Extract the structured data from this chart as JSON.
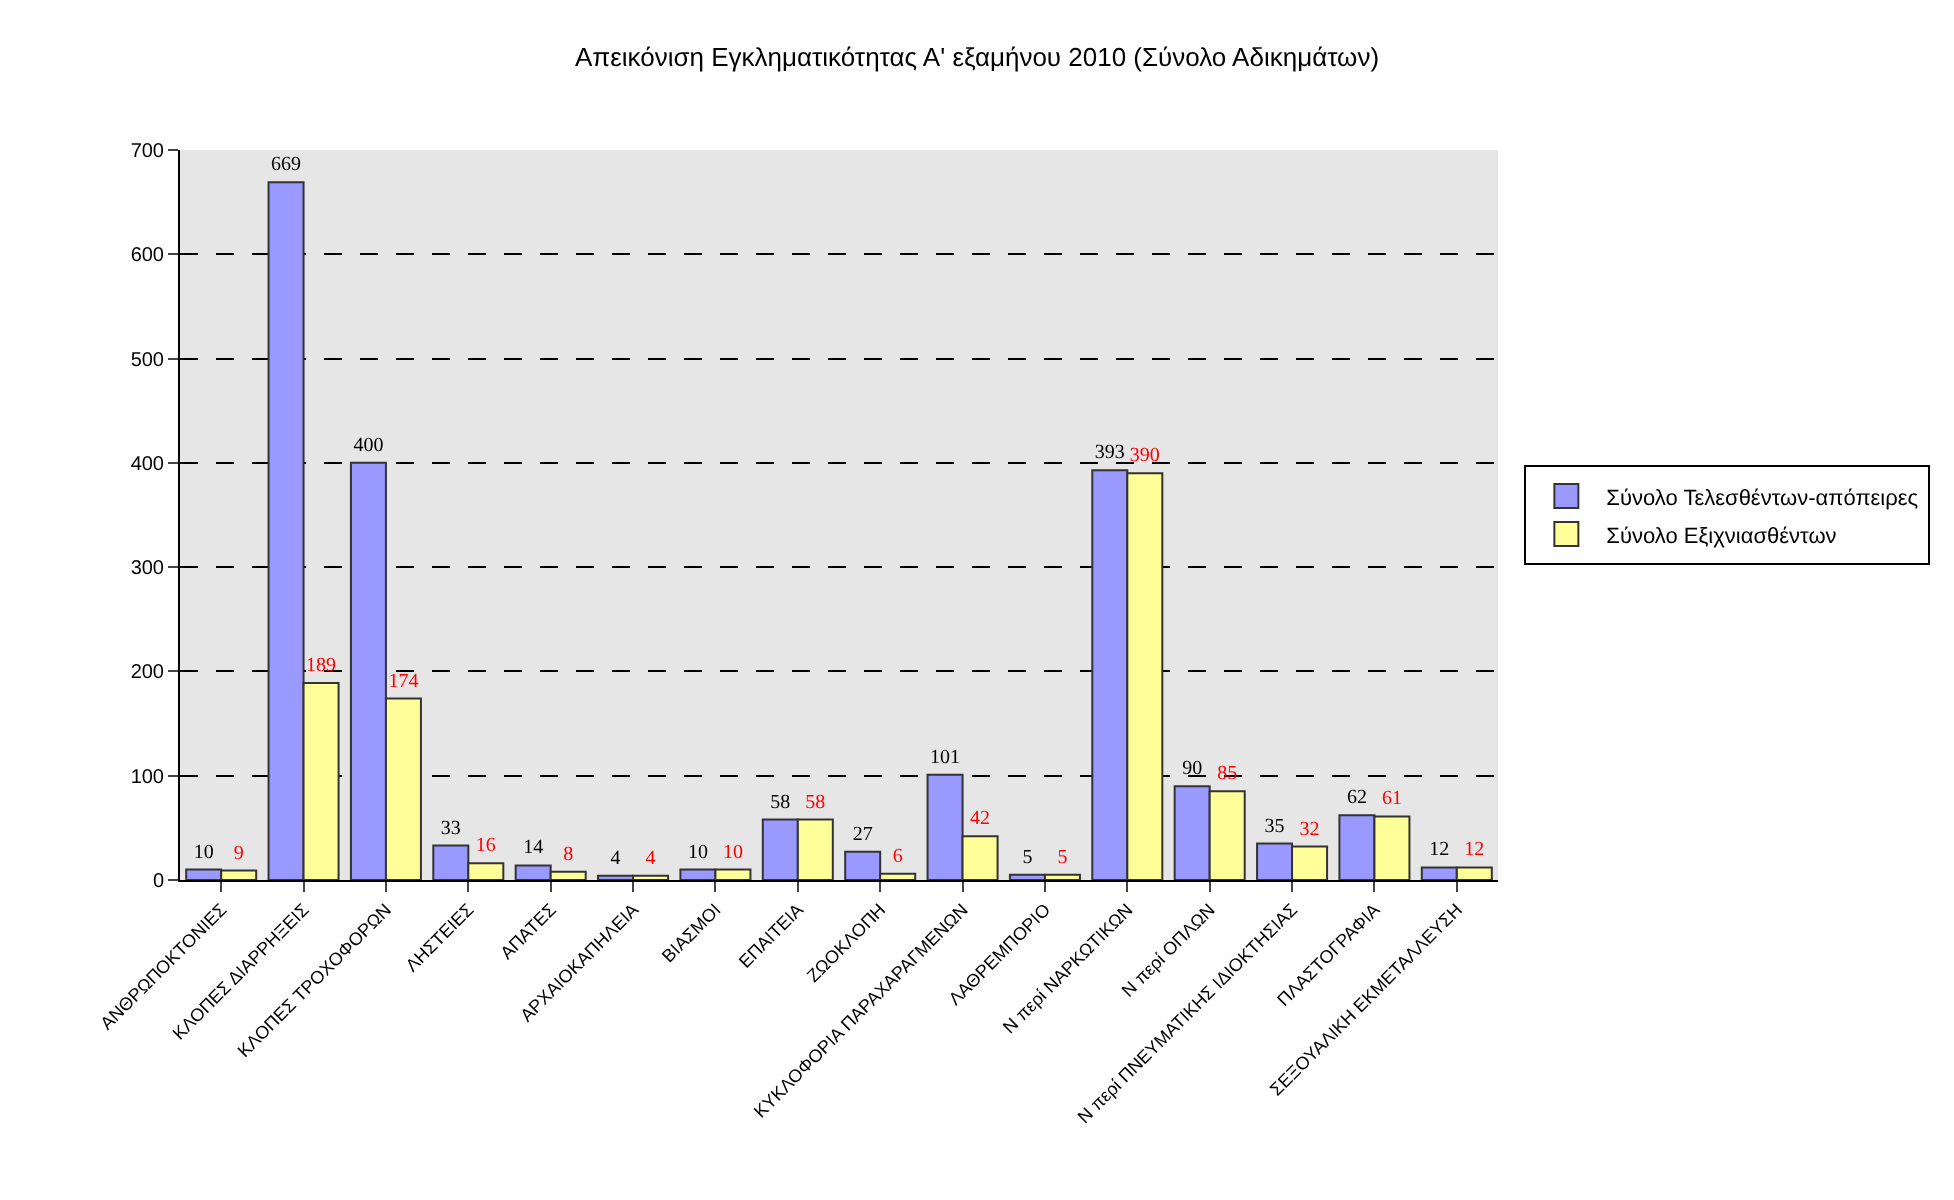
{
  "chart_data": {
    "type": "bar",
    "title": "Απεικόνιση Εγκληματικότητας Α' εξαμήνου 2010 (Σύνολο Αδικημάτων)",
    "categories": [
      "ΑΝΘΡΩΠΟΚΤΟΝΙΕΣ",
      "ΚΛΟΠΕΣ ΔΙΑΡΡΗΞΕΙΣ",
      "ΚΛΟΠΕΣ ΤΡΟΧΟΦΟΡΩΝ",
      "ΛΗΣΤΕΙΕΣ",
      "ΑΠΑΤΕΣ",
      "ΑΡΧΑΙΟΚΑΠΗΛΕΙΑ",
      "ΒΙΑΣΜΟΙ",
      "ΕΠΑΙΤΕΙΑ",
      "ΖΩΟΚΛΟΠΗ",
      "ΚΥΚΛΟΦΟΡΙΑ ΠΑΡΑΧΑΡΑΓΜΕΝΩΝ",
      "ΛΑΘΡΕΜΠΟΡΙΟ",
      "Ν περί ΝΑΡΚΩΤΙΚΩΝ",
      "Ν περί ΟΠΛΩΝ",
      "Ν περί ΠΝΕΥΜΑΤΙΚΗΣ ΙΔΙΟΚΤΗΣΙΑΣ",
      "ΠΛΑΣΤΟΓΡΑΦΙΑ",
      "ΣΕΞΟΥΑΛΙΚΗ ΕΚΜΕΤΑΛΛΕΥΣΗ"
    ],
    "series": [
      {
        "name": "Σύνολο Τελεσθέντων-απόπειρες",
        "color": "#9999ff",
        "values": [
          10,
          669,
          400,
          33,
          14,
          4,
          10,
          58,
          27,
          101,
          5,
          393,
          90,
          35,
          62,
          12
        ]
      },
      {
        "name": "Σύνολο Εξιχνιασθέντων",
        "color": "#ffff99",
        "values": [
          9,
          189,
          174,
          16,
          8,
          4,
          10,
          58,
          6,
          42,
          5,
          390,
          85,
          32,
          61,
          12
        ]
      }
    ],
    "ylim": [
      0,
      700
    ],
    "yticks": [
      0,
      100,
      200,
      300,
      400,
      500,
      600,
      700
    ],
    "grid": "y",
    "line_style": "dashed",
    "legend": "right",
    "data_labels": true
  }
}
